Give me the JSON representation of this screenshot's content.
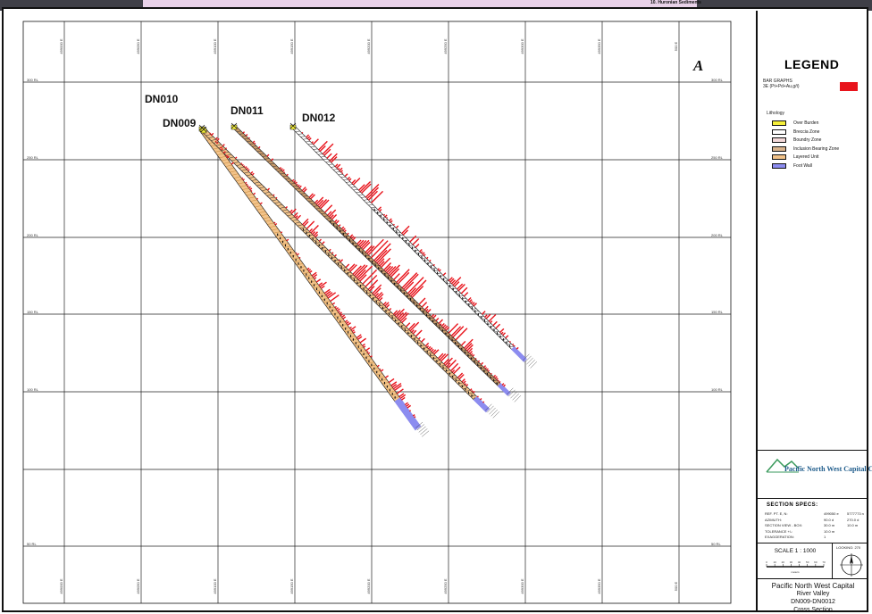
{
  "top_strip": {
    "label": "10. Huronian Sediments"
  },
  "map": {
    "corner_letter": "A",
    "hole_labels": [
      "DN010",
      "DN009",
      "DN011",
      "DN012"
    ],
    "elevation_labels": [
      "300 RL",
      "250 RL",
      "200 RL",
      "150 RL",
      "100 RL",
      "50 RL"
    ],
    "easting_labels": [
      "499000 E",
      "499050 E",
      "499100 E",
      "499150 E",
      "499200 E",
      "499250 E",
      "499300 E",
      "499350 E",
      "500 E"
    ]
  },
  "legend": {
    "title": "LEGEND",
    "bar_graph_label": "BAR GRAPHS",
    "bar_graph_sub": "3E (Pt+Pd+Au,g/t)",
    "lithology_title": "Lithology",
    "lithology": [
      {
        "label": "Over Burden",
        "color": "#f5ef3a"
      },
      {
        "label": "Breccia Zone",
        "color": "#ffffff"
      },
      {
        "label": "Boundry Zone",
        "color": "#f3d9d9"
      },
      {
        "label": "Inclusion Bearing Zone",
        "color": "#d9b38c"
      },
      {
        "label": "Layered Unit",
        "color": "#f2c38a"
      },
      {
        "label": "Foot Wall",
        "color": "#8c8cf0"
      }
    ],
    "bar_color": "#e8141c",
    "company_logo_text": "Pacific North West Capital Corp.",
    "section_specs_title": "SECTION SPECS:",
    "section_specs": [
      {
        "k": "REF. PT. E, N:",
        "v1": "499050 e",
        "v2": "5777773 n"
      },
      {
        "k": "AZIMUTH:",
        "v1": "90.0 d",
        "v2": "270.0 d"
      },
      {
        "k": "SECTION VIEW - BOX:",
        "v1": "30.0 m",
        "v2": "10.0 m"
      },
      {
        "k": "TOLERANCE +/-:",
        "v1": "10.0 m",
        "v2": ""
      },
      {
        "k": "EXAGGERATION:",
        "v1": "1",
        "v2": ""
      }
    ],
    "scale_label": "SCALE 1 : 1000",
    "scale_ticks": [
      "0",
      "10",
      "20",
      "30",
      "40",
      "50",
      "60",
      "70"
    ],
    "scale_unit": "meters",
    "north_label": "LOOKING: 270",
    "title_block": [
      "Pacific North West Capital",
      "River Valley",
      "DN009-DN0012",
      "Cross Section"
    ]
  }
}
